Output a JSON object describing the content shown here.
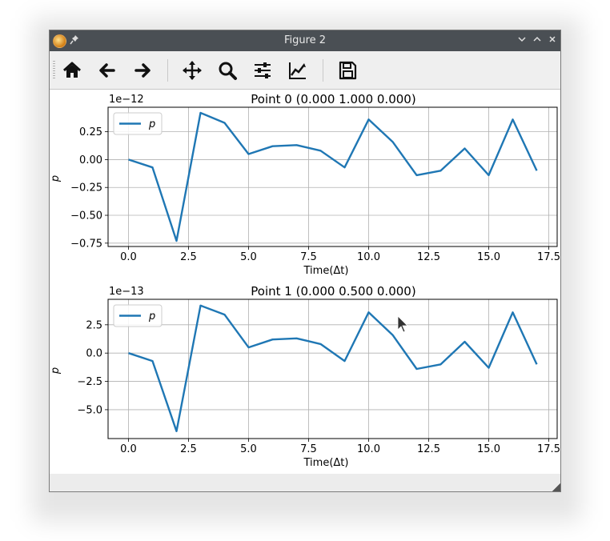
{
  "window": {
    "title": "Figure 2"
  },
  "icons": [
    "app-icon",
    "pin-icon",
    "minimize-icon",
    "maximize-icon",
    "close-icon",
    "home-icon",
    "back-arrow-icon",
    "forward-arrow-icon",
    "pan-icon",
    "zoom-icon",
    "subplots-icon",
    "edit-axis-icon",
    "save-icon"
  ],
  "toolbar": {
    "buttons": [
      "home",
      "back",
      "forward",
      "pan",
      "zoom",
      "subplots",
      "customize",
      "save"
    ]
  },
  "colors": {
    "line": "#1f77b4",
    "grid": "#b0b0b0",
    "titlebar": "#4a4f54"
  },
  "chart_data": [
    {
      "type": "line",
      "title": "Point 0 (0.000 1.000 0.000)",
      "xlabel": "Time(Δt)",
      "ylabel": "p",
      "offset_text": "1e−12",
      "x": [
        0,
        1,
        2,
        3,
        4,
        5,
        6,
        7,
        8,
        9,
        10,
        11,
        12,
        13,
        14,
        15,
        16,
        17
      ],
      "series": [
        {
          "name": "p",
          "values": [
            0.0,
            -0.07,
            -0.73,
            0.42,
            0.33,
            0.05,
            0.12,
            0.13,
            0.08,
            -0.07,
            0.36,
            0.16,
            -0.14,
            -0.1,
            0.1,
            -0.14,
            0.36,
            -0.1
          ]
        }
      ],
      "xlim": [
        -0.85,
        17.85
      ],
      "ylim": [
        -0.78,
        0.47
      ],
      "xticks": [
        "0.0",
        "2.5",
        "5.0",
        "7.5",
        "10.0",
        "12.5",
        "15.0",
        "17.5"
      ],
      "yticks": [
        "−0.75",
        "−0.50",
        "−0.25",
        "0.00",
        "0.25"
      ],
      "grid": true,
      "legend": "upper left"
    },
    {
      "type": "line",
      "title": "Point 1 (0.000 0.500 0.000)",
      "xlabel": "Time(Δt)",
      "ylabel": "p",
      "offset_text": "1e−13",
      "x": [
        0,
        1,
        2,
        3,
        4,
        5,
        6,
        7,
        8,
        9,
        10,
        11,
        12,
        13,
        14,
        15,
        16,
        17
      ],
      "series": [
        {
          "name": "p",
          "values": [
            0.0,
            -0.7,
            -6.9,
            4.2,
            3.4,
            0.5,
            1.2,
            1.3,
            0.8,
            -0.7,
            3.6,
            1.6,
            -1.4,
            -1.0,
            1.0,
            -1.3,
            3.6,
            -1.0
          ]
        }
      ],
      "xlim": [
        -0.85,
        17.85
      ],
      "ylim": [
        -7.55,
        4.75
      ],
      "xticks": [
        "0.0",
        "2.5",
        "5.0",
        "7.5",
        "10.0",
        "12.5",
        "15.0",
        "17.5"
      ],
      "yticks": [
        "−5.0",
        "−2.5",
        "0.0",
        "2.5"
      ],
      "grid": true,
      "legend": "upper left"
    }
  ]
}
